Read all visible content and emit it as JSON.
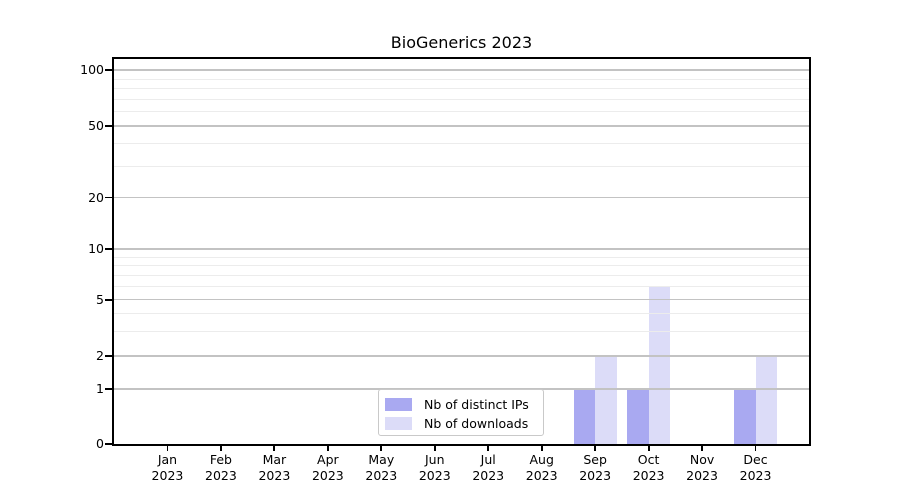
{
  "chart_data": {
    "type": "bar",
    "title": "BioGenerics 2023",
    "categories": [
      {
        "month": "Jan",
        "year": "2023"
      },
      {
        "month": "Feb",
        "year": "2023"
      },
      {
        "month": "Mar",
        "year": "2023"
      },
      {
        "month": "Apr",
        "year": "2023"
      },
      {
        "month": "May",
        "year": "2023"
      },
      {
        "month": "Jun",
        "year": "2023"
      },
      {
        "month": "Jul",
        "year": "2023"
      },
      {
        "month": "Aug",
        "year": "2023"
      },
      {
        "month": "Sep",
        "year": "2023"
      },
      {
        "month": "Oct",
        "year": "2023"
      },
      {
        "month": "Nov",
        "year": "2023"
      },
      {
        "month": "Dec",
        "year": "2023"
      }
    ],
    "series": [
      {
        "name": "Nb of distinct IPs",
        "color": "#a9a9f1",
        "values": [
          0,
          0,
          0,
          0,
          0,
          0,
          0,
          0,
          1,
          1,
          0,
          1
        ]
      },
      {
        "name": "Nb of downloads",
        "color": "#dcdcf8",
        "values": [
          0,
          0,
          0,
          0,
          0,
          0,
          0,
          0,
          2,
          6,
          0,
          2
        ]
      }
    ],
    "yscale": "symlog",
    "ylim": [
      0,
      100
    ],
    "yticks": [
      0,
      1,
      2,
      5,
      10,
      20,
      50,
      100
    ],
    "minor_yticks": [
      3,
      4,
      6,
      7,
      8,
      9,
      30,
      40,
      60,
      70,
      80,
      90
    ],
    "grid": "on",
    "legend_position": "lower center"
  },
  "colors": {
    "major_grid": "#c3c3c3",
    "minor_grid": "#ececec",
    "spine": "#000000",
    "legend_border": "#c9c9c9",
    "legend_bg": "#ffffff"
  }
}
